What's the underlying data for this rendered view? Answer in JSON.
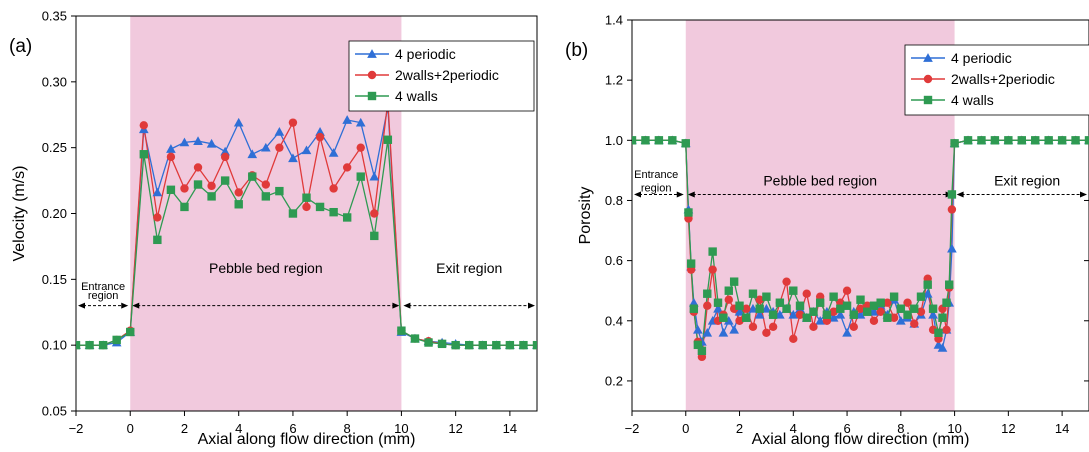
{
  "chart_data": [
    {
      "panel_label": "(a)",
      "type": "line",
      "xlabel": "Axial along flow direction (mm)",
      "ylabel": "Velocity (m/s)",
      "xlim": [
        -2,
        15
      ],
      "ylim": [
        0.05,
        0.35
      ],
      "xticks": [
        -2,
        0,
        2,
        4,
        6,
        8,
        10,
        12,
        14
      ],
      "xtick_labels": [
        "−2",
        "0",
        "2",
        "4",
        "6",
        "8",
        "10",
        "12",
        "14"
      ],
      "yticks": [
        0.05,
        0.1,
        0.15,
        0.2,
        0.25,
        0.3,
        0.35
      ],
      "ytick_labels": [
        "0.05",
        "0.10",
        "0.15",
        "0.20",
        "0.25",
        "0.30",
        "0.35"
      ],
      "shaded_region": [
        0,
        10
      ],
      "region_arrow_y": 0.13,
      "annotations": [
        {
          "text": "Entrance",
          "x": -1,
          "y": 0.142
        },
        {
          "text": "region",
          "x": -1,
          "y": 0.135
        },
        {
          "text": "Pebble bed region",
          "x": 5,
          "y": 0.155
        },
        {
          "text": "Exit region",
          "x": 12.5,
          "y": 0.155
        }
      ],
      "legend_position": "top-right",
      "series": [
        {
          "name": "4 periodic",
          "color": "#2f6fd6",
          "marker": "triangle",
          "x": [
            -2,
            -1.5,
            -1,
            -0.5,
            0,
            0.5,
            1,
            1.5,
            2,
            2.5,
            3,
            3.5,
            4,
            4.5,
            5,
            5.5,
            6,
            6.5,
            7,
            7.5,
            8,
            8.5,
            9,
            9.5,
            10,
            10.5,
            11,
            11.5,
            12,
            12.5,
            13,
            13.5,
            14,
            14.5,
            15
          ],
          "y": [
            0.1,
            0.1,
            0.1,
            0.102,
            0.11,
            0.264,
            0.216,
            0.249,
            0.254,
            0.255,
            0.253,
            0.247,
            0.269,
            0.245,
            0.25,
            0.262,
            0.242,
            0.248,
            0.262,
            0.246,
            0.271,
            0.269,
            0.228,
            0.281,
            0.11,
            0.105,
            0.103,
            0.102,
            0.101,
            0.1,
            0.1,
            0.1,
            0.1,
            0.1,
            0.1
          ]
        },
        {
          "name": "2walls+2periodic",
          "color": "#e03a3a",
          "marker": "circle",
          "x": [
            -2,
            -1.5,
            -1,
            -0.5,
            0,
            0.5,
            1,
            1.5,
            2,
            2.5,
            3,
            3.5,
            4,
            4.5,
            5,
            5.5,
            6,
            6.5,
            7,
            7.5,
            8,
            8.5,
            9,
            9.5,
            10,
            10.5,
            11,
            11.5,
            12,
            12.5,
            13,
            13.5,
            14,
            14.5,
            15
          ],
          "y": [
            0.1,
            0.1,
            0.1,
            0.104,
            0.111,
            0.267,
            0.197,
            0.243,
            0.219,
            0.235,
            0.221,
            0.243,
            0.216,
            0.229,
            0.222,
            0.25,
            0.269,
            0.205,
            0.258,
            0.219,
            0.235,
            0.25,
            0.2,
            0.285,
            0.111,
            0.105,
            0.103,
            0.101,
            0.1,
            0.1,
            0.1,
            0.1,
            0.1,
            0.1,
            0.1
          ]
        },
        {
          "name": "4 walls",
          "color": "#2e9a52",
          "marker": "square",
          "x": [
            -2,
            -1.5,
            -1,
            -0.5,
            0,
            0.5,
            1,
            1.5,
            2,
            2.5,
            3,
            3.5,
            4,
            4.5,
            5,
            5.5,
            6,
            6.5,
            7,
            7.5,
            8,
            8.5,
            9,
            9.5,
            10,
            10.5,
            11,
            11.5,
            12,
            12.5,
            13,
            13.5,
            14,
            14.5,
            15
          ],
          "y": [
            0.1,
            0.1,
            0.1,
            0.104,
            0.11,
            0.245,
            0.18,
            0.218,
            0.205,
            0.222,
            0.213,
            0.225,
            0.207,
            0.228,
            0.213,
            0.217,
            0.2,
            0.212,
            0.205,
            0.201,
            0.197,
            0.228,
            0.183,
            0.256,
            0.111,
            0.105,
            0.102,
            0.101,
            0.1,
            0.1,
            0.1,
            0.1,
            0.1,
            0.1,
            0.1
          ]
        }
      ]
    },
    {
      "panel_label": "(b)",
      "type": "line",
      "xlabel": "Axial along flow direction (mm)",
      "ylabel": "Porosity",
      "xlim": [
        -2,
        15
      ],
      "ylim": [
        0.1,
        1.4
      ],
      "xticks": [
        -2,
        0,
        2,
        4,
        6,
        8,
        10,
        12,
        14
      ],
      "xtick_labels": [
        "−2",
        "0",
        "2",
        "4",
        "6",
        "8",
        "10",
        "12",
        "14"
      ],
      "yticks": [
        0.2,
        0.4,
        0.6,
        0.8,
        1.0,
        1.2,
        1.4
      ],
      "ytick_labels": [
        "0.2",
        "0.4",
        "0.6",
        "0.8",
        "1.0",
        "1.2",
        "1.4"
      ],
      "shaded_region": [
        0,
        10
      ],
      "region_arrow_y": 0.82,
      "annotations": [
        {
          "text": "Entrance",
          "x": -1.1,
          "y": 0.875
        },
        {
          "text": "region",
          "x": -1.1,
          "y": 0.83
        },
        {
          "text": "Pebble bed region",
          "x": 5,
          "y": 0.85
        },
        {
          "text": "Exit region",
          "x": 12.7,
          "y": 0.85
        }
      ],
      "legend_position": "top-right",
      "series": [
        {
          "name": "4 periodic",
          "color": "#2f6fd6",
          "marker": "triangle",
          "x": [
            -2,
            -1.5,
            -1,
            -0.5,
            0,
            0.1,
            0.2,
            0.3,
            0.45,
            0.6,
            0.8,
            1,
            1.2,
            1.4,
            1.6,
            1.8,
            2,
            2.25,
            2.5,
            2.75,
            3,
            3.25,
            3.5,
            3.75,
            4,
            4.25,
            4.5,
            4.75,
            5,
            5.25,
            5.5,
            5.75,
            6,
            6.25,
            6.5,
            6.75,
            7,
            7.25,
            7.5,
            7.75,
            8,
            8.25,
            8.5,
            8.75,
            9,
            9.2,
            9.4,
            9.55,
            9.7,
            9.8,
            9.9,
            10,
            10.5,
            11,
            11.5,
            12,
            12.5,
            13,
            13.5,
            14,
            14.5,
            15
          ],
          "y": [
            1.0,
            1.0,
            1.0,
            1.0,
            0.99,
            0.77,
            0.58,
            0.46,
            0.37,
            0.33,
            0.36,
            0.4,
            0.44,
            0.36,
            0.4,
            0.37,
            0.43,
            0.41,
            0.44,
            0.42,
            0.44,
            0.43,
            0.42,
            0.44,
            0.42,
            0.44,
            0.41,
            0.43,
            0.4,
            0.43,
            0.41,
            0.42,
            0.36,
            0.43,
            0.42,
            0.44,
            0.43,
            0.45,
            0.42,
            0.47,
            0.4,
            0.41,
            0.39,
            0.42,
            0.49,
            0.42,
            0.32,
            0.31,
            0.37,
            0.46,
            0.64,
            0.99,
            1.0,
            1.0,
            1.0,
            1.0,
            1.0,
            1.0,
            1.0,
            1.0,
            1.0,
            1.0
          ]
        },
        {
          "name": "2walls+2periodic",
          "color": "#e03a3a",
          "marker": "circle",
          "x": [
            -2,
            -1.5,
            -1,
            -0.5,
            0,
            0.1,
            0.2,
            0.3,
            0.45,
            0.6,
            0.8,
            1,
            1.2,
            1.4,
            1.6,
            1.8,
            2,
            2.25,
            2.5,
            2.75,
            3,
            3.25,
            3.5,
            3.75,
            4,
            4.25,
            4.5,
            4.75,
            5,
            5.25,
            5.5,
            5.75,
            6,
            6.25,
            6.5,
            6.75,
            7,
            7.25,
            7.5,
            7.75,
            8,
            8.25,
            8.5,
            8.75,
            9,
            9.2,
            9.4,
            9.55,
            9.7,
            9.8,
            9.9,
            10,
            10.5,
            11,
            11.5,
            12,
            12.5,
            13,
            13.5,
            14,
            14.5,
            15
          ],
          "y": [
            1.0,
            1.0,
            1.0,
            1.0,
            0.99,
            0.74,
            0.57,
            0.43,
            0.33,
            0.28,
            0.45,
            0.57,
            0.4,
            0.42,
            0.47,
            0.44,
            0.4,
            0.44,
            0.38,
            0.47,
            0.36,
            0.38,
            0.46,
            0.53,
            0.34,
            0.42,
            0.49,
            0.38,
            0.48,
            0.4,
            0.43,
            0.46,
            0.5,
            0.38,
            0.44,
            0.45,
            0.4,
            0.43,
            0.46,
            0.41,
            0.44,
            0.46,
            0.39,
            0.43,
            0.54,
            0.37,
            0.34,
            0.44,
            0.37,
            0.51,
            0.77,
            0.99,
            1.0,
            1.0,
            1.0,
            1.0,
            1.0,
            1.0,
            1.0,
            1.0,
            1.0,
            1.0
          ]
        },
        {
          "name": "4 walls",
          "color": "#2e9a52",
          "marker": "square",
          "x": [
            -2,
            -1.5,
            -1,
            -0.5,
            0,
            0.1,
            0.2,
            0.3,
            0.45,
            0.6,
            0.8,
            1,
            1.2,
            1.4,
            1.6,
            1.8,
            2,
            2.25,
            2.5,
            2.75,
            3,
            3.25,
            3.5,
            3.75,
            4,
            4.25,
            4.5,
            4.75,
            5,
            5.25,
            5.5,
            5.75,
            6,
            6.25,
            6.5,
            6.75,
            7,
            7.25,
            7.5,
            7.75,
            8,
            8.25,
            8.5,
            8.75,
            9,
            9.2,
            9.4,
            9.55,
            9.7,
            9.8,
            9.9,
            10,
            10.5,
            11,
            11.5,
            12,
            12.5,
            13,
            13.5,
            14,
            14.5,
            15
          ],
          "y": [
            1.0,
            1.0,
            1.0,
            1.0,
            0.99,
            0.76,
            0.59,
            0.44,
            0.32,
            0.3,
            0.49,
            0.63,
            0.46,
            0.41,
            0.5,
            0.53,
            0.45,
            0.41,
            0.49,
            0.44,
            0.48,
            0.42,
            0.46,
            0.44,
            0.5,
            0.45,
            0.41,
            0.43,
            0.46,
            0.42,
            0.48,
            0.44,
            0.45,
            0.42,
            0.47,
            0.43,
            0.45,
            0.46,
            0.41,
            0.48,
            0.44,
            0.42,
            0.44,
            0.48,
            0.52,
            0.44,
            0.36,
            0.41,
            0.46,
            0.52,
            0.82,
            0.99,
            1.0,
            1.0,
            1.0,
            1.0,
            1.0,
            1.0,
            1.0,
            1.0,
            1.0,
            1.0
          ]
        }
      ]
    }
  ]
}
